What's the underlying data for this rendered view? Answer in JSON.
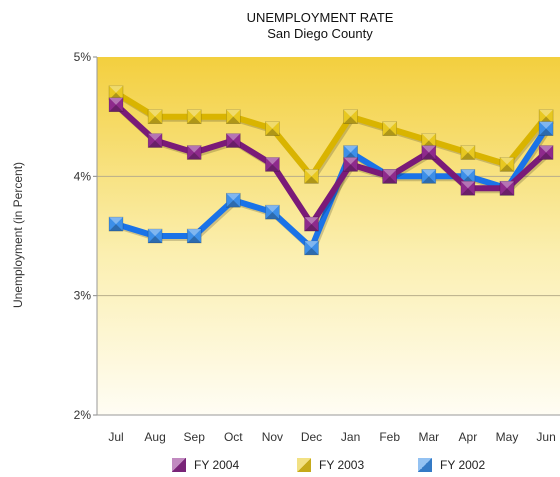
{
  "chart_data": {
    "type": "line",
    "title": "UNEMPLOYMENT RATE",
    "subtitle": "San Diego County",
    "ylabel": "Unemployment (in Percent)",
    "xlabel": "",
    "categories": [
      "Jul",
      "Aug",
      "Sep",
      "Oct",
      "Nov",
      "Dec",
      "Jan",
      "Feb",
      "Mar",
      "Apr",
      "May",
      "Jun"
    ],
    "ylim": [
      2,
      5
    ],
    "yticks": [
      {
        "value": 2,
        "label": "2%"
      },
      {
        "value": 3,
        "label": "3%"
      },
      {
        "value": 4,
        "label": "4%"
      },
      {
        "value": 5,
        "label": "5%"
      }
    ],
    "grid": true,
    "legend_position": "bottom",
    "series": [
      {
        "name": "FY 2003",
        "color": "#d9b400",
        "marker_color": "#e8c820",
        "values": [
          4.7,
          4.5,
          4.5,
          4.5,
          4.4,
          4.0,
          4.5,
          4.4,
          4.3,
          4.2,
          4.1,
          4.5
        ]
      },
      {
        "name": "FY 2002",
        "color": "#1a73e8",
        "marker_color": "#3d8fe8",
        "values": [
          3.6,
          3.5,
          3.5,
          3.8,
          3.7,
          3.4,
          4.2,
          4.0,
          4.0,
          4.0,
          3.9,
          4.4
        ]
      },
      {
        "name": "FY 2004",
        "color": "#7a1a78",
        "marker_color": "#8e2a8c",
        "values": [
          4.6,
          4.3,
          4.2,
          4.3,
          4.1,
          3.6,
          4.1,
          4.0,
          4.2,
          3.9,
          3.9,
          4.2
        ]
      }
    ],
    "legend_order": [
      "FY 2004",
      "FY 2003",
      "FY 2002"
    ]
  }
}
